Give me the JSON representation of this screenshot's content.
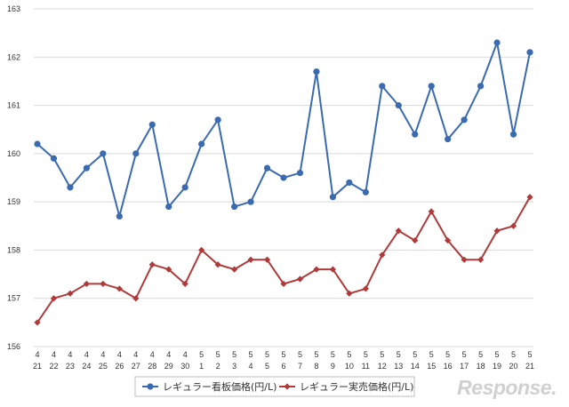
{
  "chart_data": {
    "type": "line",
    "categories": [
      [
        "4",
        "21"
      ],
      [
        "4",
        "22"
      ],
      [
        "4",
        "23"
      ],
      [
        "4",
        "24"
      ],
      [
        "4",
        "25"
      ],
      [
        "4",
        "26"
      ],
      [
        "4",
        "27"
      ],
      [
        "4",
        "28"
      ],
      [
        "4",
        "29"
      ],
      [
        "4",
        "30"
      ],
      [
        "5",
        "1"
      ],
      [
        "5",
        "2"
      ],
      [
        "5",
        "3"
      ],
      [
        "5",
        "4"
      ],
      [
        "5",
        "5"
      ],
      [
        "5",
        "6"
      ],
      [
        "5",
        "7"
      ],
      [
        "5",
        "8"
      ],
      [
        "5",
        "9"
      ],
      [
        "5",
        "10"
      ],
      [
        "5",
        "11"
      ],
      [
        "5",
        "12"
      ],
      [
        "5",
        "13"
      ],
      [
        "5",
        "14"
      ],
      [
        "5",
        "15"
      ],
      [
        "5",
        "16"
      ],
      [
        "5",
        "17"
      ],
      [
        "5",
        "18"
      ],
      [
        "5",
        "19"
      ],
      [
        "5",
        "20"
      ],
      [
        "5",
        "21"
      ]
    ],
    "ylim": [
      156,
      163
    ],
    "yticks": [
      "156",
      "157",
      "158",
      "159",
      "160",
      "161",
      "162",
      "163"
    ],
    "grid": true,
    "legend_position": "bottom",
    "series": [
      {
        "name": "レギュラー看板価格(円/L)",
        "color": "#3a6ab0",
        "marker": "circle",
        "values": [
          160.2,
          159.9,
          159.3,
          159.7,
          160.0,
          158.7,
          160.0,
          160.6,
          158.9,
          159.3,
          160.2,
          160.7,
          158.9,
          159.0,
          159.7,
          159.5,
          159.6,
          161.7,
          159.1,
          159.4,
          159.2,
          161.4,
          161.0,
          160.4,
          161.4,
          160.3,
          160.7,
          161.4,
          162.3,
          160.4,
          162.1
        ]
      },
      {
        "name": "レギュラー実売価格(円/L)",
        "color": "#b03a3a",
        "marker": "diamond",
        "values": [
          156.5,
          157.0,
          157.1,
          157.3,
          157.3,
          157.2,
          157.0,
          157.7,
          157.6,
          157.3,
          158.0,
          157.7,
          157.6,
          157.8,
          157.8,
          157.3,
          157.4,
          157.6,
          157.6,
          157.1,
          157.2,
          157.9,
          158.4,
          158.2,
          158.8,
          158.2,
          157.8,
          157.8,
          158.4,
          158.5,
          159.1
        ]
      }
    ]
  },
  "watermark": {
    "text": "Response."
  }
}
